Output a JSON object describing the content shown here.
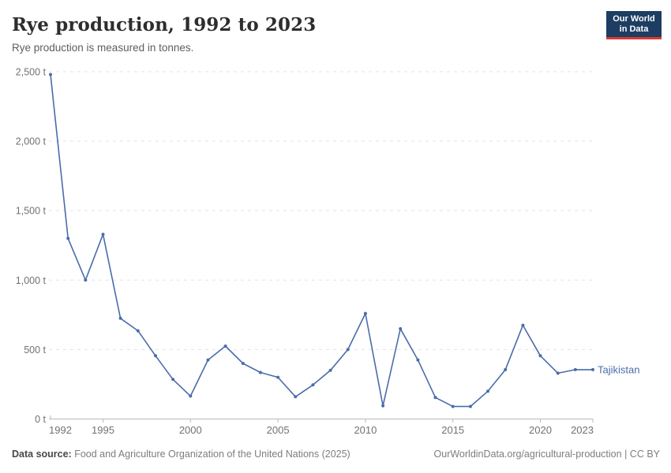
{
  "header": {
    "title": "Rye production, 1992 to 2023",
    "subtitle": "Rye production is measured in tonnes.",
    "logo_line1": "Our World",
    "logo_line2": "in Data"
  },
  "chart_data": {
    "type": "line",
    "title": "Rye production, 1992 to 2023",
    "ylabel": "",
    "xlabel": "",
    "unit": "t",
    "xlim": [
      1992,
      2023
    ],
    "ylim": [
      0,
      2500
    ],
    "xticks": [
      1992,
      1995,
      2000,
      2005,
      2010,
      2015,
      2020,
      2023
    ],
    "yticks": [
      0,
      500,
      1000,
      1500,
      2000,
      2500
    ],
    "grid": "horizontal-dashed",
    "legend": "end-of-line-label",
    "series": [
      {
        "name": "Tajikistan",
        "color": "#4a6cab",
        "x": [
          1992,
          1993,
          1994,
          1995,
          1996,
          1997,
          1998,
          1999,
          2000,
          2001,
          2002,
          2003,
          2004,
          2005,
          2006,
          2007,
          2008,
          2009,
          2010,
          2011,
          2012,
          2013,
          2014,
          2015,
          2016,
          2017,
          2018,
          2019,
          2020,
          2021,
          2022,
          2023
        ],
        "values": [
          2480,
          1300,
          1000,
          1330,
          725,
          635,
          455,
          285,
          165,
          425,
          525,
          400,
          335,
          300,
          160,
          245,
          350,
          500,
          760,
          95,
          650,
          425,
          155,
          90,
          90,
          200,
          355,
          675,
          455,
          330,
          355,
          355
        ]
      }
    ]
  },
  "footer": {
    "source_label": "Data source:",
    "source_text": " Food and Agriculture Organization of the United Nations (2025)",
    "url": "OurWorldinData.org/agricultural-production",
    "license_suffix": " | CC BY"
  },
  "style": {
    "line_color": "#4a6cab",
    "grid_color": "#e3e3e3",
    "axis_color": "#b9b9b9",
    "tick_label_color": "#727272",
    "logo_bg": "#1d3d63",
    "logo_accent": "#dc3a2e"
  }
}
